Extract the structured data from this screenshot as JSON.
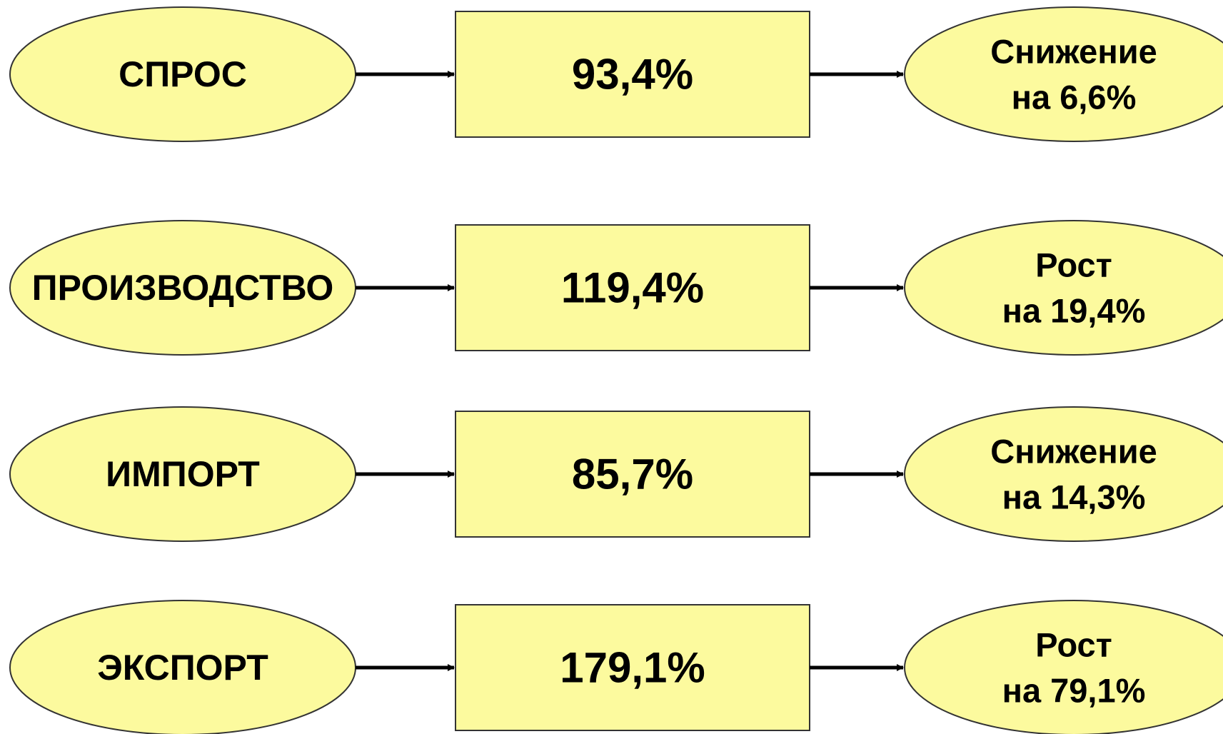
{
  "colors": {
    "node_fill": "#FCFA9E",
    "node_stroke": "#333333",
    "arrow": "#000000"
  },
  "rows": [
    {
      "label": "СПРОС",
      "value": "93,4%",
      "result": [
        "Снижение",
        "на 6,6%"
      ]
    },
    {
      "label": "ПРОИЗВОДСТВО",
      "value": "119,4%",
      "result": [
        "Рост",
        "на 19,4%"
      ]
    },
    {
      "label": "ИМПОРТ",
      "value": "85,7%",
      "result": [
        "Снижение",
        "на 14,3%"
      ]
    },
    {
      "label": "ЭКСПОРТ",
      "value": "179,1%",
      "result": [
        "Рост",
        "на 79,1%"
      ]
    }
  ]
}
